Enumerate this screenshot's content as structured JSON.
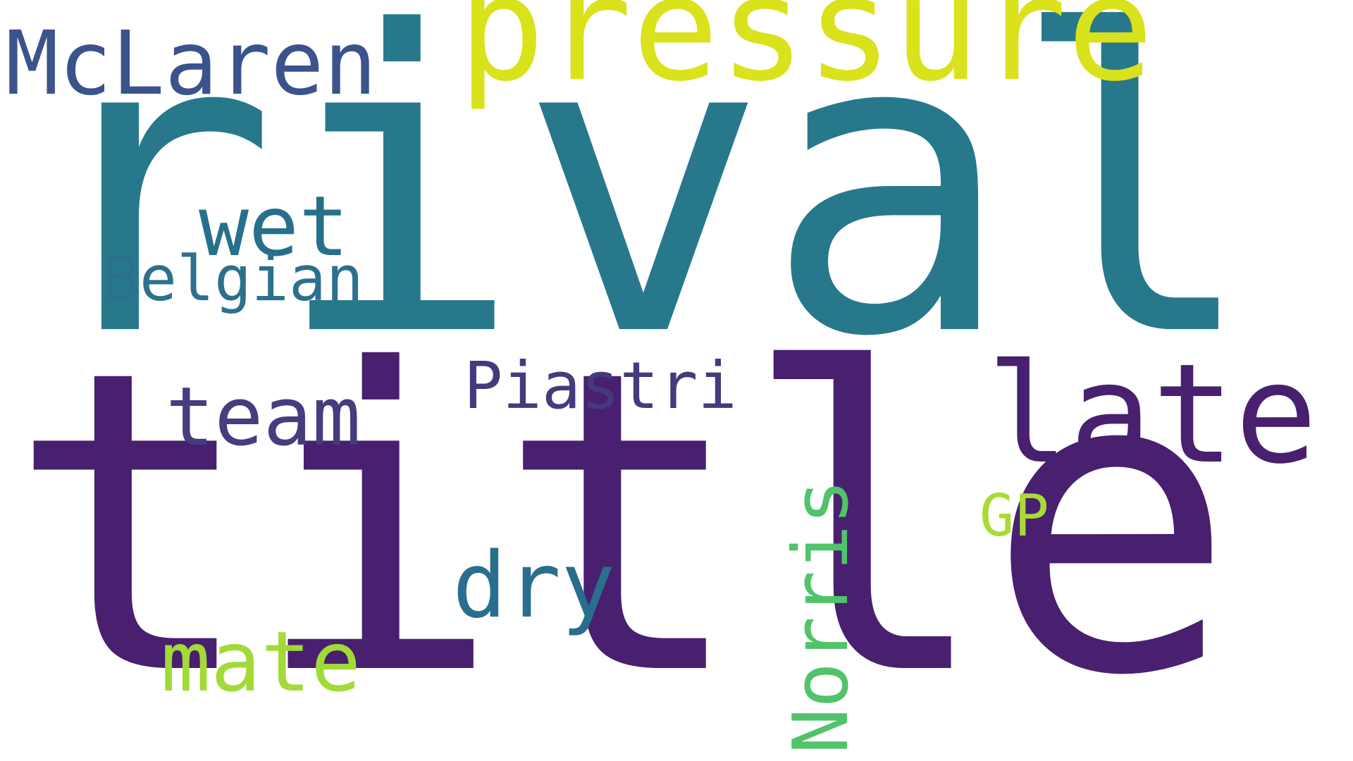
{
  "cloud": {
    "words": [
      {
        "key": "rival",
        "text": "rival",
        "color": "#28788C"
      },
      {
        "key": "title",
        "text": "title",
        "color": "#48206F"
      },
      {
        "key": "pressure",
        "text": "pressure",
        "color": "#D9E21A"
      },
      {
        "key": "mclaren",
        "text": "McLaren",
        "color": "#3B538C"
      },
      {
        "key": "wet",
        "text": "wet",
        "color": "#27708C"
      },
      {
        "key": "belgian",
        "text": "Belgian",
        "color": "#2D708E"
      },
      {
        "key": "team",
        "text": "team",
        "color": "#463C7E"
      },
      {
        "key": "piastri",
        "text": "Piastri",
        "color": "#453A7D"
      },
      {
        "key": "late",
        "text": "late",
        "color": "#48206F"
      },
      {
        "key": "gp",
        "text": "GP",
        "color": "#A9DB33"
      },
      {
        "key": "dry",
        "text": "dry",
        "color": "#2A6E8E"
      },
      {
        "key": "mate",
        "text": "mate",
        "color": "#A2DA37"
      },
      {
        "key": "norris",
        "text": "Norris",
        "color": "#51C36A"
      }
    ]
  }
}
